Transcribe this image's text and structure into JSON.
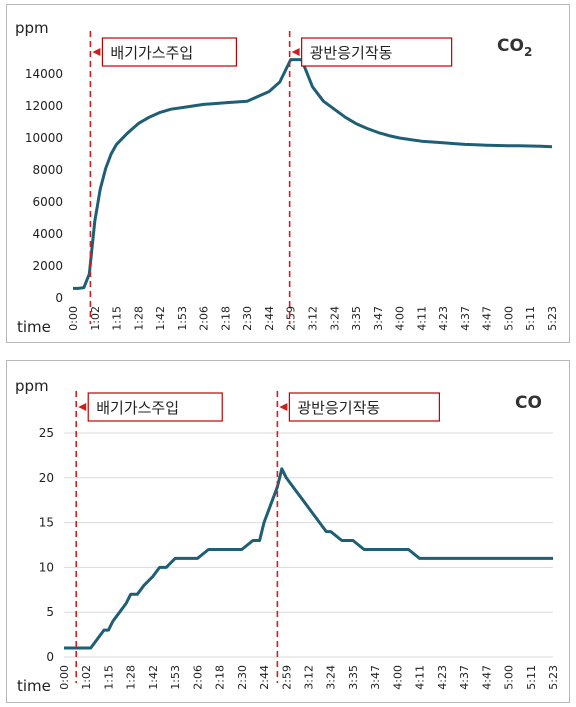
{
  "colors": {
    "series": "#1f5f76",
    "marker": "#d01e1e",
    "box_border": "#c00000",
    "grid": "#d9d9d9"
  },
  "time_label": "time",
  "time_ticks": [
    "0:00",
    "1:02",
    "1:15",
    "1:28",
    "1:42",
    "1:53",
    "2:06",
    "2:18",
    "2:30",
    "2:44",
    "2:59",
    "3:12",
    "3:24",
    "3:35",
    "3:47",
    "4:00",
    "4:11",
    "4:23",
    "4:37",
    "4:47",
    "5:00",
    "5:11",
    "5:23"
  ],
  "chart_data": [
    {
      "type": "line",
      "title_main": "CO",
      "title_sub": "2",
      "ylabel": "ppm",
      "xlabel": "time",
      "ylim": [
        0,
        15000
      ],
      "yticks": [
        0,
        2000,
        4000,
        6000,
        8000,
        10000,
        12000,
        14000
      ],
      "grid": false,
      "series": [
        {
          "x": [
            0,
            0.25,
            0.5,
            0.75,
            1,
            1.25,
            1.5,
            1.75,
            2,
            2.5,
            3,
            3.5,
            4,
            4.5,
            5,
            5.5,
            6,
            6.5,
            7,
            7.5,
            8,
            8.5,
            9,
            9.5,
            10,
            10.5,
            11,
            11.5,
            12,
            12.5,
            13,
            13.5,
            14,
            14.5,
            15,
            15.5,
            16,
            16.5,
            17,
            17.5,
            18,
            18.5,
            19,
            19.5,
            20,
            20.5,
            21,
            21.5,
            22
          ],
          "values": [
            600,
            600,
            650,
            1500,
            4800,
            6800,
            8100,
            9000,
            9600,
            10300,
            10900,
            11300,
            11600,
            11800,
            11900,
            12000,
            12100,
            12150,
            12200,
            12250,
            12300,
            12600,
            12900,
            13500,
            14900,
            14900,
            13200,
            12300,
            11800,
            11300,
            10900,
            10600,
            10350,
            10150,
            10000,
            9900,
            9800,
            9750,
            9700,
            9650,
            9600,
            9580,
            9550,
            9530,
            9520,
            9510,
            9500,
            9480,
            9450
          ]
        }
      ],
      "markers": [
        {
          "x": 0.8,
          "label": "배기가스주입"
        },
        {
          "x": 9.95,
          "label": "광반응기작동"
        }
      ]
    },
    {
      "type": "line",
      "title_main": "CO",
      "title_sub": "",
      "ylabel": "ppm",
      "xlabel": "time",
      "ylim": [
        0,
        25
      ],
      "yticks": [
        0,
        5,
        10,
        15,
        20,
        25
      ],
      "grid": true,
      "series": [
        {
          "x": [
            0,
            0.4,
            0.8,
            1,
            1.2,
            1.5,
            1.8,
            2,
            2.2,
            2.5,
            2.8,
            3,
            3.3,
            3.6,
            4,
            4.3,
            4.6,
            5,
            5.5,
            6,
            6.5,
            7,
            7.5,
            8,
            8.5,
            8.8,
            9,
            9.3,
            9.6,
            9.8,
            10,
            10.3,
            10.6,
            10.9,
            11.2,
            11.5,
            11.8,
            12,
            12.5,
            13,
            13.5,
            14,
            14.5,
            15,
            15.5,
            16,
            17,
            18,
            19,
            20,
            21,
            22
          ],
          "values": [
            1,
            1,
            1,
            1,
            1,
            2,
            3,
            3,
            4,
            5,
            6,
            7,
            7,
            8,
            9,
            10,
            10,
            11,
            11,
            11,
            12,
            12,
            12,
            12,
            13,
            13,
            15,
            17,
            19,
            21,
            20,
            19,
            18,
            17,
            16,
            15,
            14,
            14,
            13,
            13,
            12,
            12,
            12,
            12,
            12,
            11,
            11,
            11,
            11,
            11,
            11,
            11
          ]
        }
      ],
      "markers": [
        {
          "x": 0.55,
          "label": "배기가스주입"
        },
        {
          "x": 9.6,
          "label": "광반응기작동"
        }
      ]
    }
  ]
}
